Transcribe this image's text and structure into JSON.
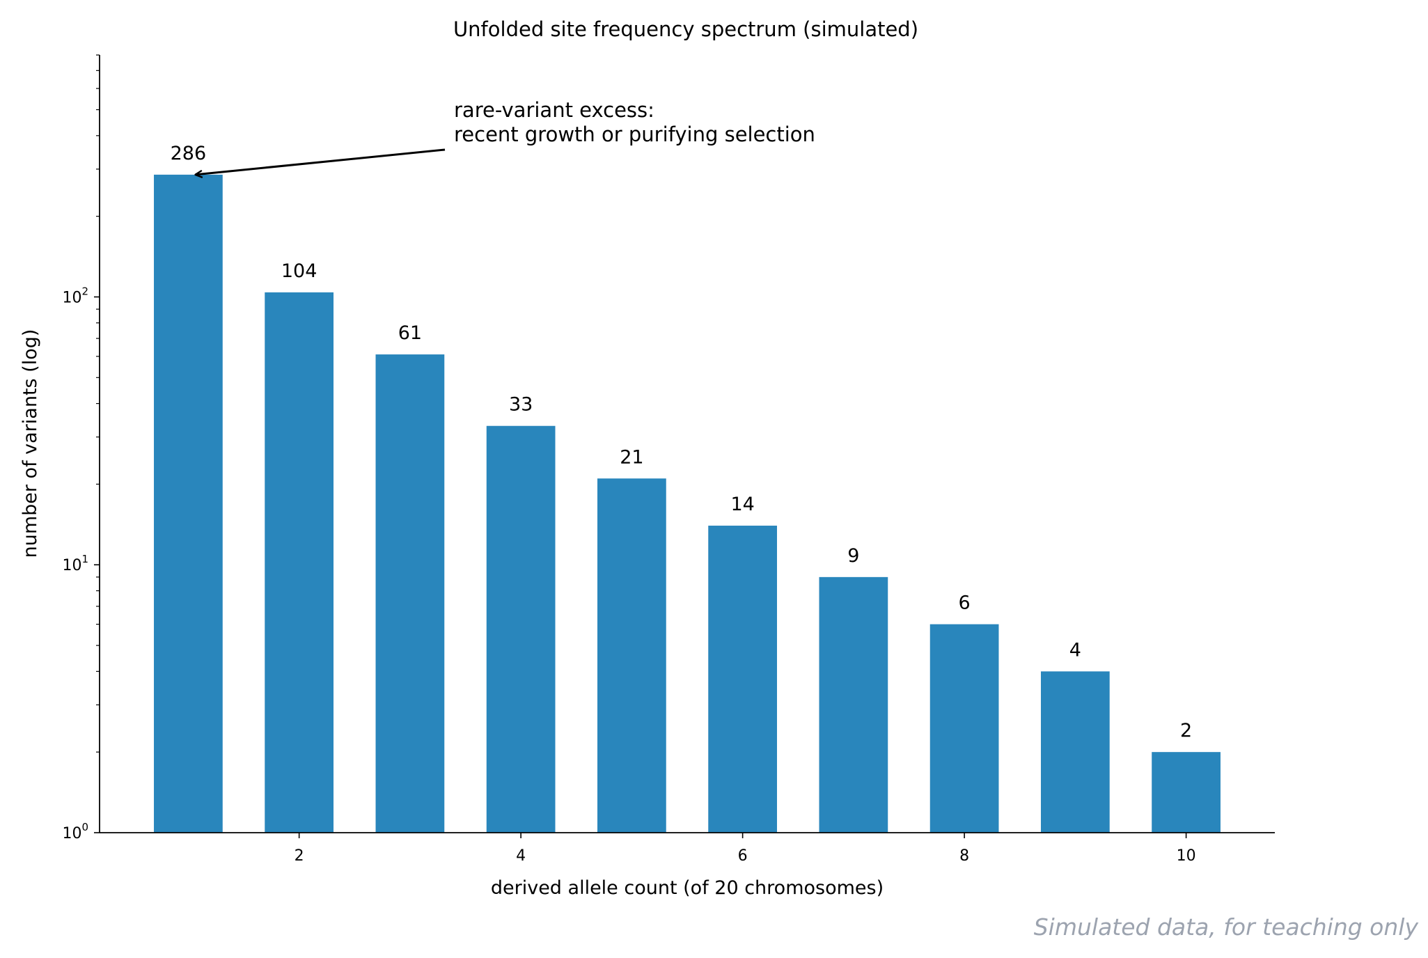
{
  "chart_data": {
    "type": "bar",
    "title": "Unfolded site frequency spectrum (simulated)",
    "xlabel": "derived allele count (of 20 chromosomes)",
    "ylabel": "number of variants (log)",
    "yscale": "log",
    "ylim": [
      1,
      800
    ],
    "xlim": [
      0.2,
      10.8
    ],
    "x": [
      1,
      2,
      3,
      4,
      5,
      6,
      7,
      8,
      9,
      10
    ],
    "values": [
      286,
      104,
      61,
      33,
      21,
      14,
      9,
      6,
      4,
      2
    ],
    "data_labels": [
      "286",
      "104",
      "61",
      "33",
      "21",
      "14",
      "9",
      "6",
      "4",
      "2"
    ],
    "xticks": [
      2,
      4,
      6,
      8,
      10
    ],
    "xtick_labels": [
      "2",
      "4",
      "6",
      "8",
      "10"
    ],
    "yticks": [
      1,
      10,
      100
    ],
    "ytick_labels": [
      {
        "base": "10",
        "exp": "0"
      },
      {
        "base": "10",
        "exp": "1"
      },
      {
        "base": "10",
        "exp": "2"
      }
    ],
    "bar_color": "#2986bc",
    "grid": false,
    "annotation": {
      "lines": [
        "rare-variant excess:",
        "recent growth or purifying selection"
      ],
      "target_x": 1,
      "target_y": 286
    }
  },
  "footer": {
    "note": "Simulated data, for teaching only"
  }
}
